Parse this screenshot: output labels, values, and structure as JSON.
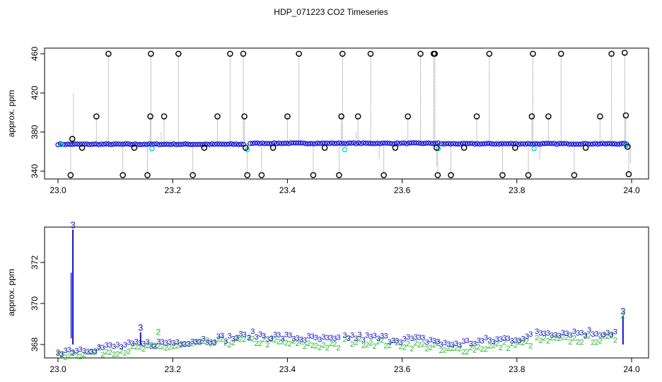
{
  "title": "HDP_071223  CO2 Timeseries",
  "colors": {
    "black": "#000000",
    "grey": "#8c8c8c",
    "blue": "#1010d0",
    "cyan": "#00d8d8",
    "green": "#22bb22"
  },
  "chart_data": [
    {
      "type": "scatter",
      "title": "",
      "xlabel": "",
      "ylabel": "approx. ppm",
      "xlim": [
        23.0,
        24.0
      ],
      "ylim": [
        333,
        465
      ],
      "x_ticks": [
        "23.0",
        "23.2",
        "23.4",
        "23.6",
        "23.8",
        "24.0"
      ],
      "y_ticks": [
        "340",
        "380",
        "420",
        "460"
      ],
      "grid": false,
      "series": [
        {
          "values_note": "",
          "marker": "o",
          "color": "blue",
          "segments": [
            [
              23.0,
              23.325,
              367.5
            ],
            [
              23.335,
              23.665,
              368.5
            ],
            [
              23.668,
              23.995,
              368.0
            ]
          ]
        },
        {
          "marker": "o",
          "color": "black",
          "points": [
            [
              23.022,
              336
            ],
            [
              23.025,
              373
            ],
            [
              23.042,
              364
            ],
            [
              23.067,
              396
            ],
            [
              23.088,
              460
            ],
            [
              23.113,
              336
            ],
            [
              23.133,
              364
            ],
            [
              23.156,
              336
            ],
            [
              23.161,
              396
            ],
            [
              23.162,
              460
            ],
            [
              23.185,
              396
            ],
            [
              23.21,
              460
            ],
            [
              23.235,
              336
            ],
            [
              23.255,
              364
            ],
            [
              23.278,
              396
            ],
            [
              23.3,
              460
            ],
            [
              23.323,
              460
            ],
            [
              23.325,
              396
            ],
            [
              23.327,
              364
            ],
            [
              23.33,
              336
            ],
            [
              23.355,
              336
            ],
            [
              23.375,
              364
            ],
            [
              23.4,
              396
            ],
            [
              23.42,
              460
            ],
            [
              23.445,
              336
            ],
            [
              23.465,
              364
            ],
            [
              23.49,
              336
            ],
            [
              23.494,
              396
            ],
            [
              23.496,
              460
            ],
            [
              23.523,
              396
            ],
            [
              23.545,
              460
            ],
            [
              23.568,
              336
            ],
            [
              23.588,
              364
            ],
            [
              23.61,
              396
            ],
            [
              23.632,
              460
            ],
            [
              23.655,
              460
            ],
            [
              23.657,
              460
            ],
            [
              23.66,
              364
            ],
            [
              23.662,
              336
            ],
            [
              23.685,
              336
            ],
            [
              23.708,
              364
            ],
            [
              23.73,
              396
            ],
            [
              23.752,
              460
            ],
            [
              23.775,
              336
            ],
            [
              23.797,
              364
            ],
            [
              23.82,
              336
            ],
            [
              23.826,
              396
            ],
            [
              23.828,
              460
            ],
            [
              23.855,
              396
            ],
            [
              23.877,
              460
            ],
            [
              23.9,
              336
            ],
            [
              23.92,
              364
            ],
            [
              23.945,
              396
            ],
            [
              23.965,
              460
            ],
            [
              23.988,
              461
            ],
            [
              23.99,
              397
            ],
            [
              23.993,
              365
            ],
            [
              23.995,
              337
            ]
          ]
        }
      ]
    },
    {
      "type": "scatter",
      "title": "",
      "xlabel": "",
      "ylabel": "approx. ppm",
      "xlim": [
        23.0,
        24.0
      ],
      "ylim": [
        367.3,
        374
      ],
      "x_ticks": [
        "23.0",
        "23.2",
        "23.4",
        "23.6",
        "23.8",
        "24.0"
      ],
      "y_ticks": [
        "368",
        "370",
        "372"
      ],
      "grid": false,
      "series": [
        {
          "name": "3",
          "color": "blue",
          "marker": "3",
          "segments": [
            [
              23.0,
              23.325,
              367.7,
              368.4
            ],
            [
              23.333,
              23.49,
              368.5,
              368.2
            ],
            [
              23.5,
              23.665,
              368.4,
              368.2
            ],
            [
              23.668,
              23.83,
              368.0,
              368.4
            ],
            [
              23.835,
              23.975,
              368.6,
              368.6
            ]
          ],
          "spikes": [
            [
              23.026,
              373.6
            ],
            [
              23.144,
              368.6
            ],
            [
              23.985,
              369.4
            ]
          ]
        },
        {
          "name": "2",
          "color": "green",
          "marker": "2",
          "segments": [
            [
              23.0,
              23.325,
              367.5,
              368.2
            ],
            [
              23.333,
              23.49,
              368.2,
              367.9
            ],
            [
              23.5,
              23.665,
              368.2,
              367.9
            ],
            [
              23.668,
              23.83,
              367.7,
              368.1
            ],
            [
              23.835,
              23.975,
              368.2,
              368.3
            ]
          ],
          "spikes": [
            [
              23.175,
              368.4
            ],
            [
              23.985,
              369.2
            ]
          ]
        }
      ]
    }
  ]
}
